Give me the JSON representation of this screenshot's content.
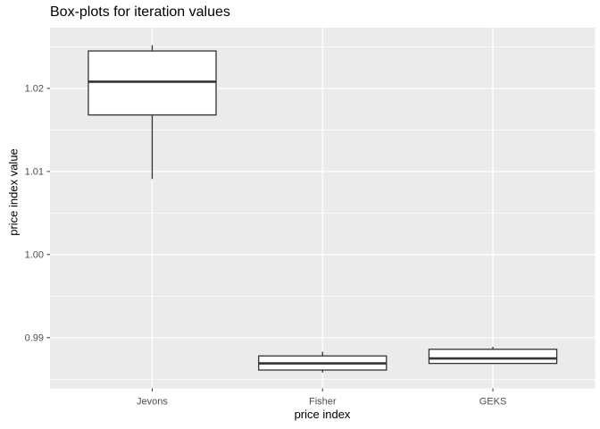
{
  "chart_data": {
    "type": "boxplot",
    "title": "Box-plots for iteration values",
    "xlabel": "price index",
    "ylabel": "price index value",
    "categories": [
      "Jevons",
      "Fisher",
      "GEKS"
    ],
    "series": [
      {
        "name": "Jevons",
        "whisker_low": 1.0091,
        "q1": 1.0168,
        "median": 1.0208,
        "q3": 1.0245,
        "whisker_high": 1.0252
      },
      {
        "name": "Fisher",
        "whisker_low": 0.9858,
        "q1": 0.9861,
        "median": 0.9869,
        "q3": 0.9878,
        "whisker_high": 0.9883
      },
      {
        "name": "GEKS",
        "whisker_low": 0.9869,
        "q1": 0.9869,
        "median": 0.9875,
        "q3": 0.9886,
        "whisker_high": 0.9889
      }
    ],
    "ylim": [
      0.9839,
      1.0273
    ],
    "yticks": [
      0.99,
      1.0,
      1.01,
      1.02
    ],
    "ytick_labels": [
      "0.99",
      "1.00",
      "1.01",
      "1.02"
    ],
    "yminor": [
      0.985,
      0.995,
      1.005,
      1.015,
      1.025
    ],
    "grid": true,
    "legend": "none",
    "colors": {
      "panel_bg": "#EBEBEB",
      "grid": "#FFFFFF",
      "box_stroke": "#333333",
      "box_fill": "#FFFFFF",
      "tick_label": "#4D4D4D",
      "axis_title": "#000000"
    }
  }
}
